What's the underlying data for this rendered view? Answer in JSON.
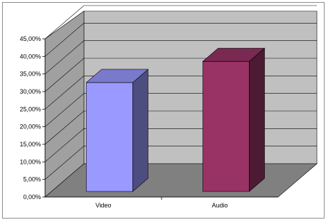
{
  "chart_data": {
    "type": "bar",
    "categories": [
      "Video",
      "Audio"
    ],
    "values": [
      31,
      37
    ],
    "series_colors": [
      "#9999ff",
      "#993366"
    ],
    "ylim": [
      0,
      45
    ],
    "ytick_labels": [
      "0,00%",
      "5,00%",
      "10,00%",
      "15,00%",
      "20,00%",
      "25,00%",
      "30,00%",
      "35,00%",
      "40,00%",
      "45,00%"
    ],
    "grid": true,
    "style": "3d",
    "legend": "none",
    "title": "",
    "xlabel": "",
    "ylabel": ""
  }
}
